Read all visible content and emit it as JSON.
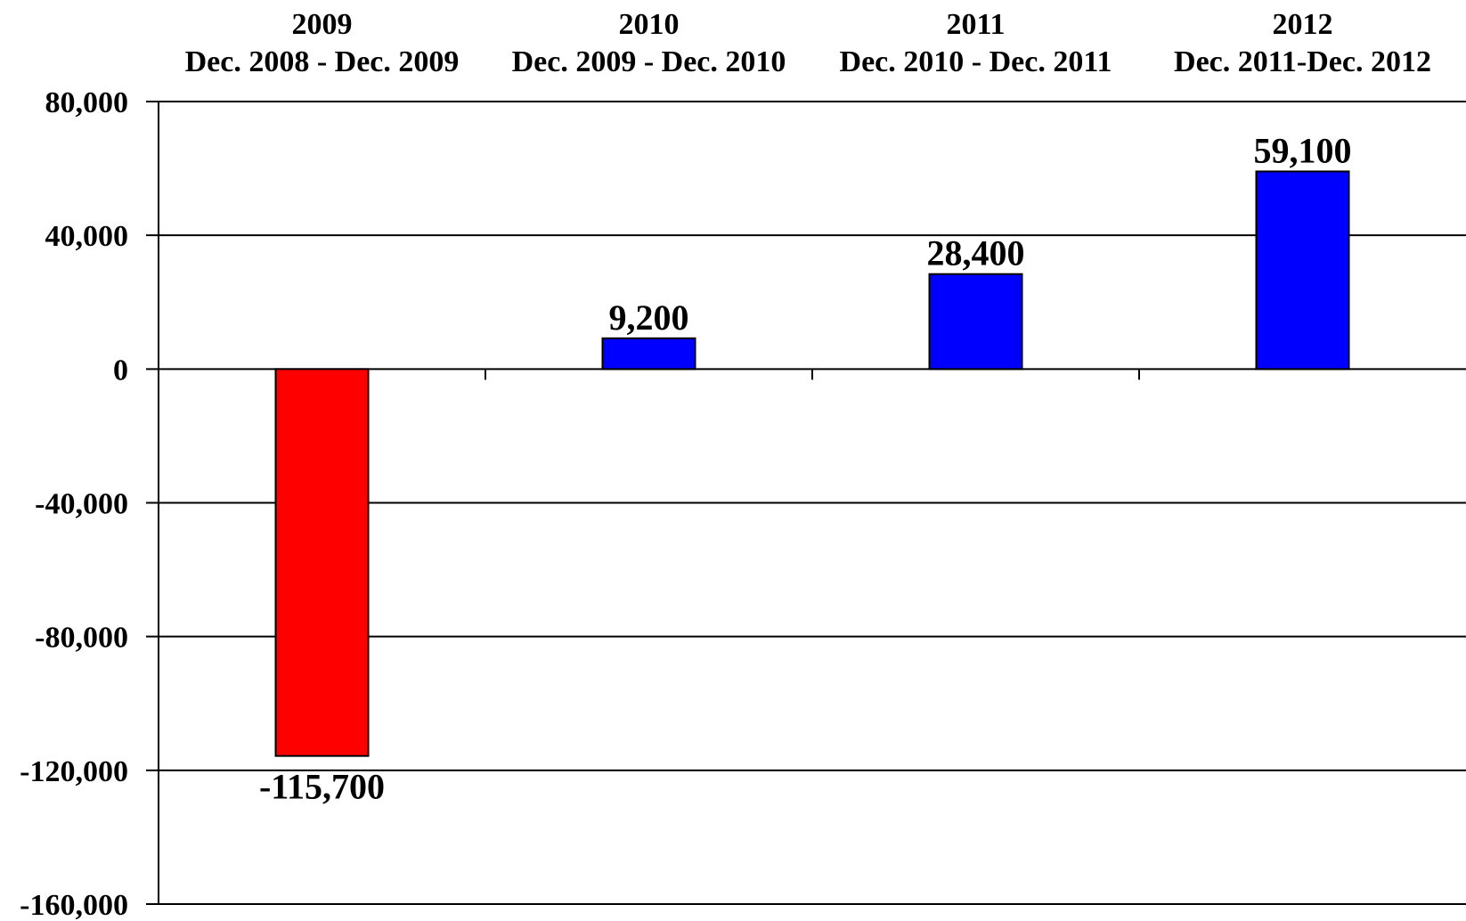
{
  "chart_data": {
    "type": "bar",
    "categories": [
      {
        "year": "2009",
        "period": "Dec. 2008 - Dec. 2009"
      },
      {
        "year": "2010",
        "period": "Dec. 2009 - Dec. 2010"
      },
      {
        "year": "2011",
        "period": "Dec. 2010 - Dec. 2011"
      },
      {
        "year": "2012",
        "period": "Dec. 2011-Dec. 2012"
      }
    ],
    "values": [
      -115700,
      9200,
      28400,
      59100
    ],
    "data_labels": [
      "-115,700",
      "9,200",
      "28,400",
      "59,100"
    ],
    "title": "",
    "xlabel": "",
    "ylabel": "",
    "ylim": [
      -160000,
      80000
    ],
    "y_ticks": [
      80000,
      40000,
      0,
      -40000,
      -80000,
      -120000,
      -160000
    ],
    "y_tick_labels": [
      "80,000",
      "40,000",
      "0",
      "-40,000",
      "-80,000",
      "-120,000",
      "-160,000"
    ],
    "grid": true,
    "x_axis_position": "top",
    "legend": "none",
    "colors": {
      "negative": "#ff0000",
      "positive": "#0000ff",
      "bar_outline": "#000000",
      "grid": "#000000"
    }
  }
}
